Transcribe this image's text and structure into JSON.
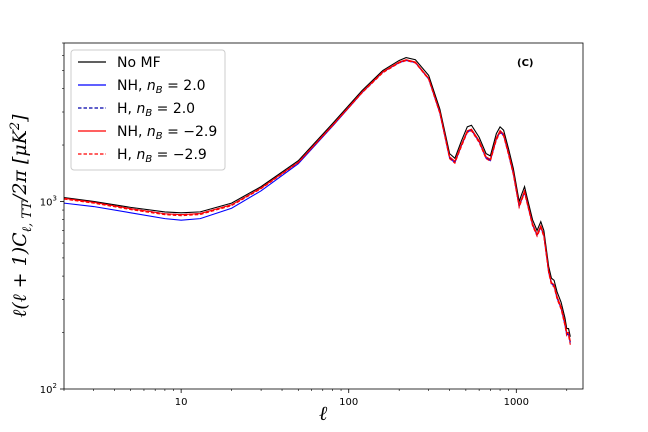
{
  "chart_data": {
    "type": "line",
    "title": "",
    "annotation": "(C)",
    "xlabel": "ℓ",
    "ylabel": "ℓ(ℓ + 1)C",
    "ylabel_sub": "ℓ, TT",
    "ylabel_tail": "/2π [μK",
    "ylabel_sup": "2",
    "ylabel_end": "]",
    "x_scale": "log",
    "y_scale": "log",
    "xlim": [
      2,
      2500
    ],
    "ylim": [
      100,
      7000
    ],
    "x_ticks": [
      {
        "value": 10,
        "label": "10"
      },
      {
        "value": 100,
        "label": "100"
      },
      {
        "value": 1000,
        "label": "1000"
      }
    ],
    "y_ticks": [
      {
        "value": 100,
        "label": "10",
        "sup": "2"
      },
      {
        "value": 1000,
        "label": "10",
        "sup": "3"
      }
    ],
    "grid": false,
    "legend_position": "top-left",
    "series": [
      {
        "name": "No MF",
        "color": "#000000",
        "dash": "solid",
        "points": [
          [
            2,
            1050
          ],
          [
            3,
            1000
          ],
          [
            5,
            930
          ],
          [
            8,
            880
          ],
          [
            10,
            870
          ],
          [
            13,
            880
          ],
          [
            20,
            980
          ],
          [
            30,
            1200
          ],
          [
            50,
            1650
          ],
          [
            80,
            2600
          ],
          [
            120,
            3900
          ],
          [
            160,
            5000
          ],
          [
            200,
            5650
          ],
          [
            220,
            5850
          ],
          [
            250,
            5700
          ],
          [
            300,
            4700
          ],
          [
            350,
            3100
          ],
          [
            400,
            1800
          ],
          [
            430,
            1700
          ],
          [
            470,
            2100
          ],
          [
            510,
            2500
          ],
          [
            540,
            2550
          ],
          [
            600,
            2200
          ],
          [
            660,
            1800
          ],
          [
            700,
            1750
          ],
          [
            760,
            2300
          ],
          [
            800,
            2500
          ],
          [
            840,
            2400
          ],
          [
            900,
            1900
          ],
          [
            960,
            1500
          ],
          [
            1040,
            1000
          ],
          [
            1080,
            1100
          ],
          [
            1120,
            1200
          ],
          [
            1160,
            1050
          ],
          [
            1250,
            800
          ],
          [
            1330,
            700
          ],
          [
            1400,
            780
          ],
          [
            1460,
            700
          ],
          [
            1560,
            450
          ],
          [
            1620,
            390
          ],
          [
            1680,
            380
          ],
          [
            1750,
            330
          ],
          [
            1850,
            290
          ],
          [
            1950,
            240
          ],
          [
            2000,
            210
          ],
          [
            2050,
            210
          ],
          [
            2100,
            190
          ]
        ]
      },
      {
        "name": "NH, n_B = 2.0",
        "label_main": "NH, ",
        "label_n": "n",
        "label_sub": "B",
        "label_value": " = 2.0",
        "color": "#0000ff",
        "dash": "solid",
        "points": [
          [
            2,
            980
          ],
          [
            3,
            940
          ],
          [
            5,
            870
          ],
          [
            8,
            810
          ],
          [
            10,
            795
          ],
          [
            13,
            810
          ],
          [
            20,
            920
          ],
          [
            30,
            1140
          ],
          [
            50,
            1590
          ],
          [
            80,
            2520
          ],
          [
            120,
            3800
          ],
          [
            160,
            4900
          ],
          [
            200,
            5500
          ],
          [
            220,
            5650
          ],
          [
            250,
            5500
          ],
          [
            300,
            4500
          ],
          [
            350,
            2950
          ],
          [
            400,
            1700
          ],
          [
            430,
            1610
          ],
          [
            470,
            1980
          ],
          [
            510,
            2350
          ],
          [
            540,
            2400
          ],
          [
            600,
            2080
          ],
          [
            660,
            1700
          ],
          [
            700,
            1650
          ],
          [
            760,
            2150
          ],
          [
            800,
            2350
          ],
          [
            840,
            2250
          ],
          [
            900,
            1780
          ],
          [
            960,
            1400
          ],
          [
            1040,
            940
          ],
          [
            1080,
            1030
          ],
          [
            1120,
            1120
          ],
          [
            1160,
            985
          ],
          [
            1250,
            750
          ],
          [
            1330,
            660
          ],
          [
            1400,
            730
          ],
          [
            1460,
            655
          ],
          [
            1560,
            420
          ],
          [
            1620,
            365
          ],
          [
            1680,
            355
          ],
          [
            1750,
            305
          ],
          [
            1850,
            270
          ],
          [
            1950,
            220
          ],
          [
            2000,
            195
          ],
          [
            2050,
            195
          ],
          [
            2100,
            175
          ]
        ]
      },
      {
        "name": "H, n_B = 2.0",
        "label_main": "H, ",
        "label_n": "n",
        "label_sub": "B",
        "label_value": " = 2.0",
        "color": "#0000aa",
        "dash": "dashed",
        "points": [
          [
            2,
            1040
          ],
          [
            3,
            990
          ],
          [
            5,
            915
          ],
          [
            8,
            860
          ],
          [
            10,
            850
          ],
          [
            13,
            862
          ],
          [
            20,
            960
          ],
          [
            30,
            1180
          ],
          [
            50,
            1620
          ],
          [
            80,
            2550
          ],
          [
            120,
            3820
          ],
          [
            160,
            4900
          ],
          [
            200,
            5520
          ],
          [
            220,
            5680
          ],
          [
            250,
            5520
          ],
          [
            300,
            4520
          ],
          [
            350,
            2980
          ],
          [
            400,
            1720
          ],
          [
            430,
            1630
          ],
          [
            470,
            2000
          ],
          [
            510,
            2370
          ],
          [
            540,
            2420
          ],
          [
            600,
            2100
          ],
          [
            660,
            1720
          ],
          [
            700,
            1670
          ],
          [
            760,
            2170
          ],
          [
            800,
            2380
          ],
          [
            840,
            2280
          ],
          [
            900,
            1800
          ],
          [
            960,
            1420
          ],
          [
            1040,
            950
          ],
          [
            1080,
            1040
          ],
          [
            1120,
            1135
          ],
          [
            1160,
            995
          ],
          [
            1250,
            758
          ],
          [
            1330,
            665
          ],
          [
            1400,
            738
          ],
          [
            1460,
            662
          ],
          [
            1560,
            425
          ],
          [
            1620,
            368
          ],
          [
            1680,
            358
          ],
          [
            1750,
            310
          ],
          [
            1850,
            272
          ],
          [
            1950,
            225
          ],
          [
            2000,
            198
          ],
          [
            2050,
            198
          ],
          [
            2100,
            178
          ]
        ]
      },
      {
        "name": "NH, n_B = -2.9",
        "label_main": "NH, ",
        "label_n": "n",
        "label_sub": "B",
        "label_value": " = −2.9",
        "color": "#ff0000",
        "dash": "solid",
        "points": [
          [
            2,
            1040
          ],
          [
            3,
            990
          ],
          [
            5,
            915
          ],
          [
            8,
            860
          ],
          [
            10,
            850
          ],
          [
            13,
            862
          ],
          [
            20,
            960
          ],
          [
            30,
            1180
          ],
          [
            50,
            1620
          ],
          [
            80,
            2550
          ],
          [
            120,
            3830
          ],
          [
            160,
            4920
          ],
          [
            200,
            5540
          ],
          [
            220,
            5700
          ],
          [
            250,
            5540
          ],
          [
            300,
            4540
          ],
          [
            350,
            3000
          ],
          [
            400,
            1730
          ],
          [
            430,
            1640
          ],
          [
            470,
            2010
          ],
          [
            510,
            2380
          ],
          [
            540,
            2430
          ],
          [
            600,
            2110
          ],
          [
            660,
            1730
          ],
          [
            700,
            1680
          ],
          [
            760,
            2180
          ],
          [
            800,
            2390
          ],
          [
            840,
            2290
          ],
          [
            900,
            1810
          ],
          [
            960,
            1430
          ],
          [
            1040,
            955
          ],
          [
            1080,
            1045
          ],
          [
            1120,
            1140
          ],
          [
            1160,
            1000
          ],
          [
            1250,
            762
          ],
          [
            1330,
            668
          ],
          [
            1400,
            742
          ],
          [
            1460,
            665
          ],
          [
            1560,
            428
          ],
          [
            1620,
            370
          ],
          [
            1680,
            360
          ],
          [
            1750,
            312
          ],
          [
            1850,
            274
          ],
          [
            1950,
            227
          ],
          [
            2000,
            200
          ],
          [
            2050,
            200
          ],
          [
            2100,
            180
          ]
        ]
      },
      {
        "name": "H, n_B = -2.9",
        "label_main": "H, ",
        "label_n": "n",
        "label_sub": "B",
        "label_value": " = −2.9",
        "color": "#ff0000",
        "dash": "dashed",
        "points": [
          [
            2,
            1030
          ],
          [
            3,
            980
          ],
          [
            5,
            905
          ],
          [
            8,
            850
          ],
          [
            10,
            840
          ],
          [
            13,
            852
          ],
          [
            20,
            950
          ],
          [
            30,
            1170
          ],
          [
            50,
            1610
          ],
          [
            80,
            2530
          ],
          [
            120,
            3790
          ],
          [
            160,
            4860
          ],
          [
            200,
            5480
          ],
          [
            220,
            5640
          ],
          [
            250,
            5480
          ],
          [
            300,
            4480
          ],
          [
            350,
            2940
          ],
          [
            400,
            1690
          ],
          [
            430,
            1600
          ],
          [
            470,
            1960
          ],
          [
            510,
            2330
          ],
          [
            540,
            2380
          ],
          [
            600,
            2060
          ],
          [
            660,
            1690
          ],
          [
            700,
            1640
          ],
          [
            760,
            2120
          ],
          [
            800,
            2330
          ],
          [
            840,
            2230
          ],
          [
            900,
            1760
          ],
          [
            960,
            1390
          ],
          [
            1040,
            930
          ],
          [
            1080,
            1020
          ],
          [
            1120,
            1110
          ],
          [
            1160,
            975
          ],
          [
            1250,
            742
          ],
          [
            1330,
            652
          ],
          [
            1400,
            722
          ],
          [
            1460,
            648
          ],
          [
            1560,
            415
          ],
          [
            1620,
            360
          ],
          [
            1680,
            350
          ],
          [
            1750,
            302
          ],
          [
            1850,
            266
          ],
          [
            1950,
            218
          ],
          [
            2000,
            192
          ],
          [
            2050,
            192
          ],
          [
            2100,
            172
          ]
        ]
      }
    ]
  }
}
